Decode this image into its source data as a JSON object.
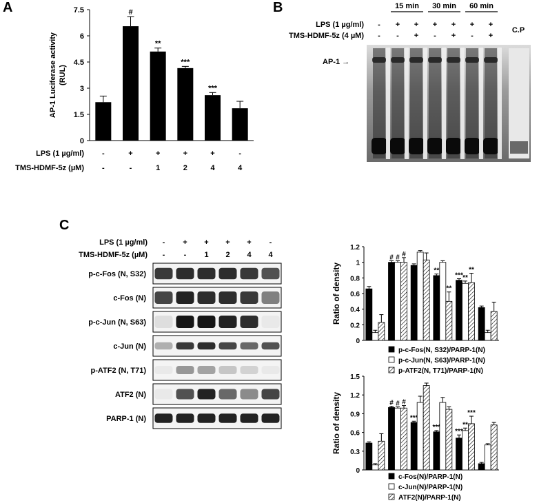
{
  "panel_labels": {
    "a": "A",
    "b": "B",
    "c": "C"
  },
  "chart_data": [
    {
      "type": "bar",
      "panel": "A",
      "ylabel": "AP-1 Luciferase activity (RUL)",
      "ylim": [
        0,
        7.5
      ],
      "yticks": [
        "0",
        "1.5",
        "3",
        "4.5",
        "6",
        "7.5"
      ],
      "values": [
        2.2,
        6.55,
        5.1,
        4.15,
        2.6,
        1.85
      ],
      "errors": [
        0.35,
        0.55,
        0.2,
        0.1,
        0.15,
        0.4
      ],
      "significance": [
        "",
        "#",
        "**",
        "***",
        "***",
        ""
      ],
      "conditions": {
        "lps_label": "LPS (1 µg/ml)",
        "lps": [
          "-",
          "+",
          "+",
          "+",
          "+",
          "-"
        ],
        "tms_label": "TMS-HDMF-5z (µM)",
        "tms": [
          "-",
          "-",
          "1",
          "2",
          "4",
          "4"
        ]
      },
      "bar_color": "#000000"
    },
    {
      "type": "bar",
      "panel": "C-top",
      "ylabel": "Ratio of density",
      "ylim": [
        0,
        1.2
      ],
      "yticks": [
        "0",
        "0.2",
        "0.4",
        "0.6",
        "0.8",
        "1",
        "1.2"
      ],
      "series": [
        {
          "name": "p-c-Fos(N,  S32)/PARP-1(N)",
          "values": [
            0.66,
            1.0,
            0.96,
            0.83,
            0.77,
            0.42
          ],
          "errors": [
            0.03,
            0.02,
            0.02,
            0.02,
            0.02,
            0.02
          ],
          "fill": "black"
        },
        {
          "name": "p-c-Jun(N,  S63)/PARP-1(N)",
          "values": [
            0.1,
            1.0,
            1.13,
            1.0,
            0.73,
            0.1
          ],
          "errors": [
            0.03,
            0.02,
            0.02,
            0.02,
            0.03,
            0.03
          ],
          "fill": "white"
        },
        {
          "name": "p-ATF2(N,  T71)/PARP-1(N)",
          "values": [
            0.23,
            1.0,
            1.03,
            0.5,
            0.74,
            0.37
          ],
          "errors": [
            0.1,
            0.06,
            0.09,
            0.12,
            0.12,
            0.12
          ],
          "fill": "hatch"
        }
      ],
      "significance": [
        [
          "",
          "#",
          "",
          "**",
          "***",
          ""
        ],
        [
          "",
          "#",
          "",
          "",
          "**",
          ""
        ],
        [
          "",
          "#",
          "",
          "**",
          "**",
          ""
        ]
      ]
    },
    {
      "type": "bar",
      "panel": "C-bottom",
      "ylabel": "Ratio of density",
      "ylim": [
        0,
        1.5
      ],
      "yticks": [
        "0",
        "0.3",
        "0.6",
        "0.9",
        "1.2",
        "1.5"
      ],
      "series": [
        {
          "name": "c-Fos(N)/PARP-1(N)",
          "values": [
            0.43,
            1.0,
            0.76,
            0.61,
            0.51,
            0.1
          ],
          "errors": [
            0.02,
            0.02,
            0.02,
            0.02,
            0.05,
            0.02
          ],
          "fill": "black"
        },
        {
          "name": "c-Jun(N)/PARP-1(N)",
          "values": [
            0.08,
            0.99,
            1.08,
            1.08,
            0.63,
            0.4
          ],
          "errors": [
            0.02,
            0.02,
            0.1,
            0.08,
            0.04,
            0.02
          ],
          "fill": "white"
        },
        {
          "name": "ATF2(N)/PARP-1(N)",
          "values": [
            0.46,
            0.99,
            1.35,
            0.97,
            0.74,
            0.72
          ],
          "errors": [
            0.12,
            0.04,
            0.04,
            0.04,
            0.12,
            0.04
          ],
          "fill": "hatch"
        }
      ],
      "significance": [
        [
          "",
          "#",
          "***",
          "***",
          "***",
          ""
        ],
        [
          "",
          "#",
          "",
          "",
          "**",
          ""
        ],
        [
          "",
          "#",
          "",
          "",
          "***",
          ""
        ]
      ]
    }
  ],
  "panel_b": {
    "time_labels": [
      "15 min",
      "30 min",
      "60 min"
    ],
    "lps_label": "LPS (1 µg/ml)",
    "lps": [
      "-",
      "+",
      "+",
      "+",
      "+",
      "+",
      "+"
    ],
    "tms_label": "TMS-HDMF-5z (4 µM)",
    "tms": [
      "-",
      "-",
      "+",
      "-",
      "+",
      "-",
      "+"
    ],
    "cp_label": "C.P",
    "band_label": "AP-1 →"
  },
  "panel_c": {
    "lps_label": "LPS (1 µg/ml)",
    "lps": [
      "-",
      "+",
      "+",
      "+",
      "+",
      "-"
    ],
    "tms_label": "TMS-HDMF-5z (µM)",
    "tms": [
      "-",
      "-",
      "1",
      "2",
      "4",
      "4"
    ],
    "blots": [
      {
        "label": "p-c-Fos (N, S32)",
        "intensity": [
          0.8,
          0.85,
          0.85,
          0.85,
          0.8,
          0.7
        ],
        "thickness": 0.55
      },
      {
        "label": "c-Fos (N)",
        "intensity": [
          0.75,
          0.9,
          0.85,
          0.85,
          0.8,
          0.5
        ],
        "thickness": 0.6
      },
      {
        "label": "p-c-Jun (N, S63)",
        "intensity": [
          0.1,
          0.95,
          0.95,
          0.9,
          0.85,
          0.05
        ],
        "thickness": 0.6
      },
      {
        "label": "c-Jun (N)",
        "intensity": [
          0.3,
          0.8,
          0.85,
          0.75,
          0.6,
          0.7
        ],
        "thickness": 0.35
      },
      {
        "label": "p-ATF2 (N, T71)",
        "intensity": [
          0.05,
          0.4,
          0.35,
          0.2,
          0.15,
          0.05
        ],
        "thickness": 0.4
      },
      {
        "label": "ATF2 (N)",
        "intensity": [
          0.05,
          0.7,
          0.9,
          0.6,
          0.45,
          0.75
        ],
        "thickness": 0.5
      },
      {
        "label": "PARP-1 (N)",
        "intensity": [
          0.9,
          0.9,
          0.9,
          0.9,
          0.9,
          0.9
        ],
        "thickness": 0.45
      }
    ]
  }
}
